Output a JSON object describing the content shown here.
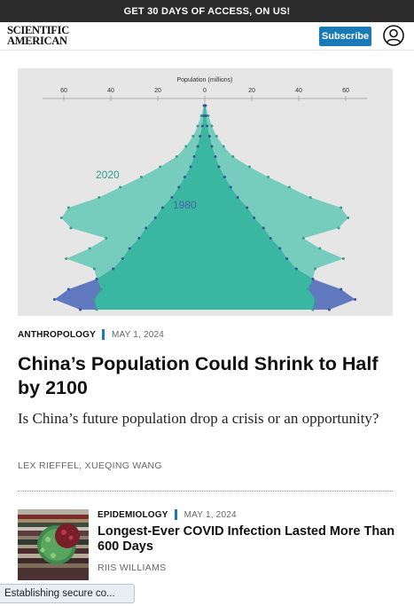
{
  "promo": {
    "text": "GET 30 DAYS OF ACCESS, ON US!"
  },
  "header": {
    "logo_line1": "SCIENTIFIC",
    "logo_line2": "AMERICAN",
    "subscribe_label": "Subscribe",
    "account_icon": "user-circle-icon"
  },
  "chart_data": {
    "type": "area",
    "title": "Population (millions)",
    "x_ticks": [
      "60",
      "40",
      "20",
      "0",
      "20",
      "40",
      "60"
    ],
    "xlim": [
      -65,
      65
    ],
    "xlabel": "Population (millions)",
    "note": "population pyramid, left = male, right = female, rows from oldest (top) to youngest (bottom)",
    "colors": {
      "2020_light": "#76cdbe",
      "2020_dark": "#39b7a0",
      "1980": "#6079be",
      "axis": "#999999"
    },
    "series": [
      {
        "name": "2020",
        "male": [
          0.3,
          1.5,
          3,
          5,
          8,
          12,
          19,
          27,
          36,
          45,
          58,
          61,
          57,
          42,
          49,
          59,
          47,
          46,
          44,
          47,
          46
        ],
        "female": [
          0.3,
          1.5,
          3,
          5,
          8,
          12,
          19,
          27,
          36,
          45,
          58,
          61,
          57,
          42,
          49,
          59,
          47,
          46,
          44,
          47,
          46
        ]
      },
      {
        "name": "1980",
        "male": [
          0.3,
          0.5,
          1,
          2,
          3,
          4.5,
          6,
          8.5,
          11,
          14,
          18,
          21,
          25,
          28,
          32,
          35,
          39,
          46,
          58,
          64,
          53
        ],
        "female": [
          0.3,
          0.5,
          1,
          2,
          3,
          4.5,
          6,
          8.5,
          11,
          14,
          18,
          21,
          25,
          28,
          32,
          35,
          39,
          46,
          58,
          64,
          53
        ]
      }
    ],
    "series_labels": [
      "2020",
      "1980"
    ]
  },
  "article": {
    "category": "ANTHROPOLOGY",
    "date": "MAY 1, 2024",
    "headline": "China’s Population Could Shrink to Half by 2100",
    "dek": "Is China’s future population drop a crisis or an opportunity?",
    "byline": "LEX RIEFFEL, XUEQING WANG"
  },
  "article2": {
    "category": "EPIDEMIOLOGY",
    "date": "MAY 1, 2024",
    "headline": "Longest-Ever COVID Infection Lasted More Than 600 Days",
    "byline": "RIIS WILLIAMS"
  },
  "status": {
    "text": "Establishing secure co..."
  }
}
